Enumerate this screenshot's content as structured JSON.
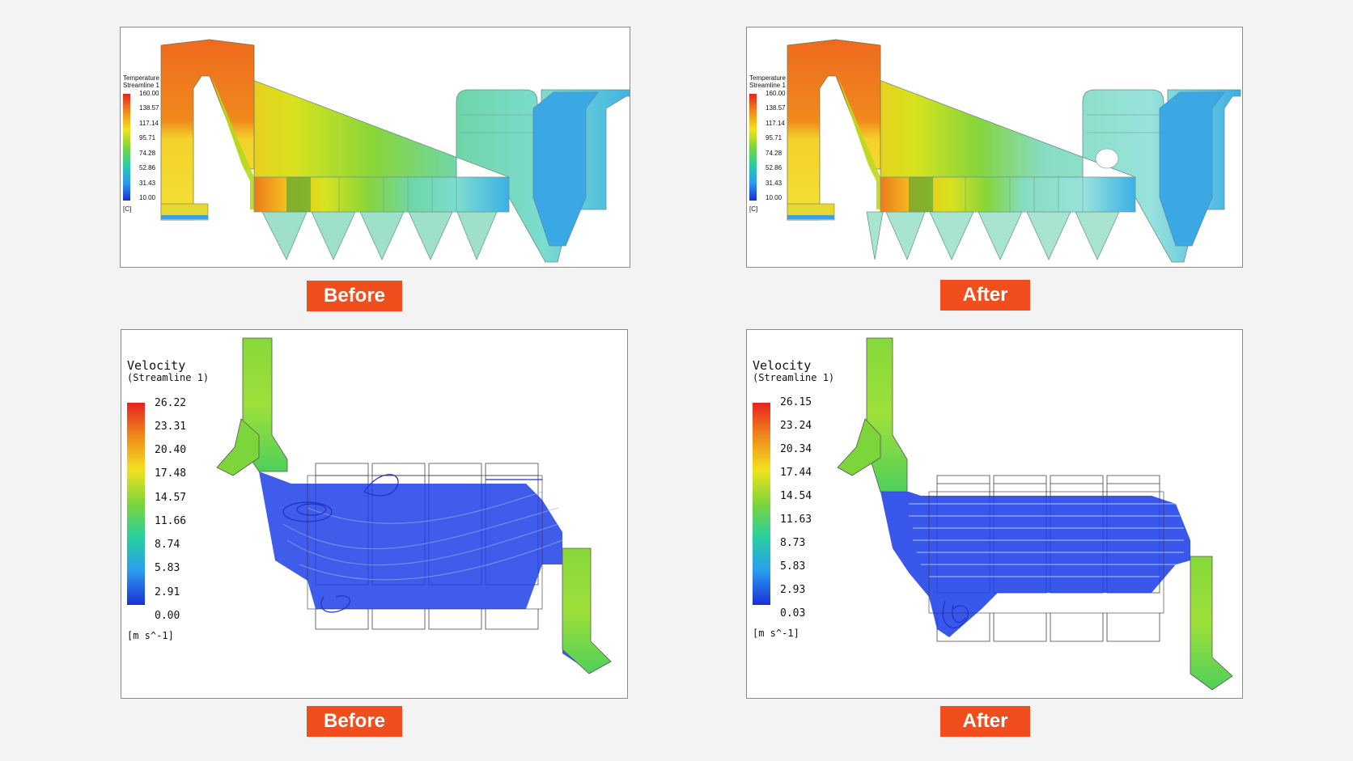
{
  "labels": {
    "before": "Before",
    "after": "After"
  },
  "temperature_legend": {
    "title_line1": "Temperature",
    "title_line2": "Streamline 1",
    "unit": "[C]",
    "ticks": [
      "160.00",
      "138.57",
      "117.14",
      "95.71",
      "74.28",
      "52.86",
      "31.43",
      "10.00"
    ]
  },
  "velocity_before": {
    "title": "Velocity",
    "subtitle": "(Streamline 1)",
    "unit": "[m s^-1]",
    "ticks": [
      "26.22",
      "23.31",
      "20.40",
      "17.48",
      "14.57",
      "11.66",
      "8.74",
      "5.83",
      "2.91",
      "0.00"
    ]
  },
  "velocity_after": {
    "title": "Velocity",
    "subtitle": "(Streamline 1)",
    "unit": "[m s^-1]",
    "ticks": [
      "26.15",
      "23.24",
      "20.34",
      "17.44",
      "14.54",
      "11.63",
      "8.73",
      "5.83",
      "2.93",
      "0.03"
    ]
  },
  "colors": {
    "tag_bg": "#f04e1c",
    "panel_border": "#8a8a8a",
    "streamline": "#1f3fe0"
  }
}
